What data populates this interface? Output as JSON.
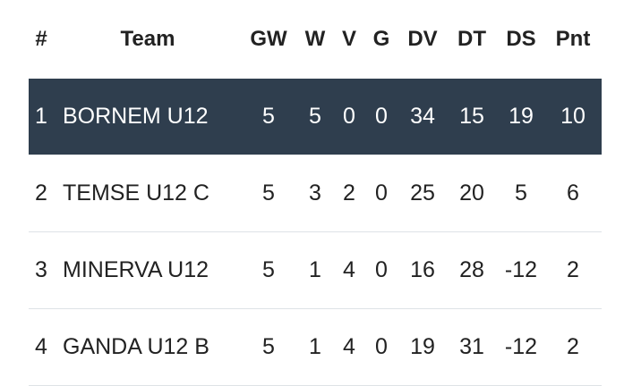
{
  "table": {
    "header": [
      "#",
      "Team",
      "GW",
      "W",
      "V",
      "G",
      "DV",
      "DT",
      "DS",
      "Pnt"
    ],
    "rows": [
      [
        1,
        "BORNEM U12",
        5,
        5,
        0,
        0,
        34,
        15,
        19,
        10
      ],
      [
        2,
        "TEMSE U12 C",
        5,
        3,
        2,
        0,
        25,
        20,
        5,
        6
      ],
      [
        3,
        "MINERVA U12",
        5,
        1,
        4,
        0,
        16,
        28,
        -12,
        2
      ],
      [
        4,
        "GANDA U12 B",
        5,
        1,
        4,
        0,
        19,
        31,
        -12,
        2
      ]
    ]
  }
}
